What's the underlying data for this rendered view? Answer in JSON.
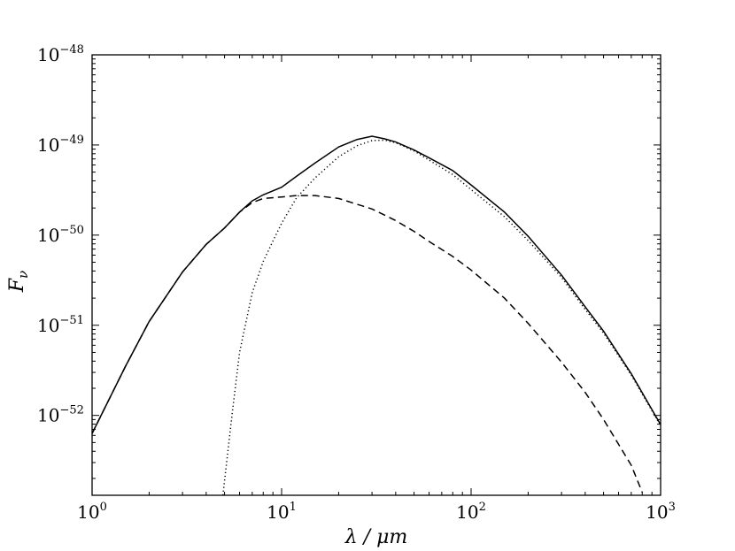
{
  "chart_data": {
    "type": "line",
    "title": "",
    "xlabel": "λ / μm",
    "ylabel": "F",
    "ylabel_sub": "ν",
    "x_scale": "log",
    "y_scale": "log",
    "xlim": [
      1,
      1000
    ],
    "ylim": [
      1.3e-53,
      1e-48
    ],
    "grid": false,
    "legend": "none",
    "x_ticks": [
      {
        "base": "10",
        "exp": "0",
        "value": 1
      },
      {
        "base": "10",
        "exp": "1",
        "value": 10
      },
      {
        "base": "10",
        "exp": "2",
        "value": 100
      },
      {
        "base": "10",
        "exp": "3",
        "value": 1000
      }
    ],
    "y_ticks": [
      {
        "base": "10",
        "exp": "−48",
        "value": 1e-48
      },
      {
        "base": "10",
        "exp": "−49",
        "value": 1e-49
      },
      {
        "base": "10",
        "exp": "−50",
        "value": 1e-50
      },
      {
        "base": "10",
        "exp": "−51",
        "value": 1e-51
      },
      {
        "base": "10",
        "exp": "−52",
        "value": 1e-52
      }
    ],
    "series": [
      {
        "style": "solid",
        "color": "#000000",
        "x": [
          1,
          1.5,
          2,
          3,
          4,
          5,
          6,
          7,
          8,
          10,
          12,
          15,
          20,
          25,
          30,
          35,
          40,
          50,
          60,
          80,
          100,
          150,
          200,
          300,
          400,
          500,
          700,
          1000
        ],
        "y": [
          6.3e-53,
          3.5e-52,
          1.1e-51,
          3.9e-51,
          7.9e-51,
          1.2e-50,
          1.8e-50,
          2.4e-50,
          2.8e-50,
          3.4e-50,
          4.5e-50,
          6.3e-50,
          9.5e-50,
          1.15e-49,
          1.25e-49,
          1.17e-49,
          1.08e-49,
          8.8e-50,
          7.2e-50,
          5.2e-50,
          3.6e-50,
          1.8e-50,
          9.7e-51,
          3.6e-51,
          1.6e-51,
          8.6e-52,
          2.9e-52,
          7.9e-53
        ]
      },
      {
        "style": "dashed",
        "color": "#000000",
        "x": [
          1,
          1.5,
          2,
          3,
          4,
          5,
          6,
          7,
          8,
          10,
          12,
          15,
          20,
          30,
          40,
          50,
          60,
          80,
          100,
          150,
          200,
          300,
          400,
          500,
          700,
          800
        ],
        "y": [
          6.3e-53,
          3.5e-52,
          1.1e-51,
          3.9e-51,
          7.9e-51,
          1.2e-50,
          1.8e-50,
          2.3e-50,
          2.55e-50,
          2.65e-50,
          2.75e-50,
          2.75e-50,
          2.55e-50,
          1.95e-50,
          1.45e-50,
          1.1e-50,
          8.5e-51,
          5.8e-51,
          4.1e-51,
          2e-51,
          1.05e-51,
          3.9e-52,
          1.8e-52,
          9e-53,
          2.8e-53,
          1.4e-53
        ]
      },
      {
        "style": "dotted",
        "color": "#000000",
        "x": [
          4.9,
          5.5,
          6,
          7,
          8,
          9,
          10,
          12,
          15,
          20,
          25,
          30,
          35,
          40,
          50,
          60,
          80,
          100,
          150,
          200,
          300,
          400,
          500,
          700,
          1000
        ],
        "y": [
          1.3e-53,
          1.1e-52,
          5e-52,
          2.3e-51,
          5.1e-51,
          8.6e-51,
          1.35e-50,
          2.6e-50,
          4.3e-50,
          7.4e-50,
          9.8e-50,
          1.12e-49,
          1.13e-49,
          1.06e-49,
          8.6e-50,
          6.8e-50,
          4.7e-50,
          3.2e-50,
          1.6e-50,
          8.7e-51,
          3.4e-51,
          1.5e-51,
          8.2e-52,
          2.8e-52,
          7.7e-53
        ]
      }
    ]
  }
}
